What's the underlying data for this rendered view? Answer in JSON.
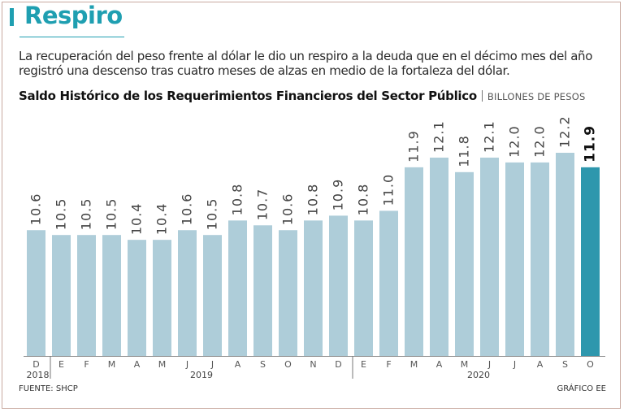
{
  "title": "Respiro",
  "subtitle": "La recuperación del peso frente al dólar le dio un respiro a la deuda que en el décimo mes del año registró una descenso tras cuatro meses de alzas en medio de la fortaleza del dólar.",
  "chart_heading": "Saldo Histórico de los Requerimientos Financieros del Sector Público",
  "chart_units": "BILLONES DE PESOS",
  "source": "FUENTE:  SHCP",
  "credit": "GRÁFICO EE",
  "colors": {
    "accent": "#1f9fb1",
    "bar": "#aecdd9",
    "highlight": "#2e97ad",
    "frame": "#c9a9a0"
  },
  "chart_data": {
    "type": "bar",
    "title": "Saldo Histórico de los Requerimientos Financieros del Sector Público",
    "ylabel": "BILLONES DE PESOS",
    "categories": [
      "D",
      "E",
      "F",
      "M",
      "A",
      "M",
      "J",
      "J",
      "A",
      "S",
      "O",
      "N",
      "D",
      "E",
      "F",
      "M",
      "A",
      "M",
      "J",
      "J",
      "A",
      "S",
      "O"
    ],
    "values": [
      10.6,
      10.5,
      10.5,
      10.5,
      10.4,
      10.4,
      10.6,
      10.5,
      10.8,
      10.7,
      10.6,
      10.8,
      10.9,
      10.8,
      11.0,
      11.9,
      12.1,
      11.8,
      12.1,
      12.0,
      12.0,
      12.2,
      11.9
    ],
    "value_labels": [
      "10.6",
      "10.5",
      "10.5",
      "10.5",
      "10.4",
      "10.4",
      "10.6",
      "10.5",
      "10.8",
      "10.7",
      "10.6",
      "10.8",
      "10.9",
      "10.8",
      "11.0",
      "11.9",
      "12.1",
      "11.8",
      "12.1",
      "12.0",
      "12.0",
      "12.2",
      "11.9"
    ],
    "highlight_index": 22,
    "years": [
      {
        "label": "2018",
        "start": 0,
        "end": 0
      },
      {
        "label": "2019",
        "start": 1,
        "end": 12
      },
      {
        "label": "2020",
        "start": 13,
        "end": 22
      }
    ],
    "ylim": [
      8.0,
      12.2
    ],
    "grid": false,
    "legend": "none"
  }
}
